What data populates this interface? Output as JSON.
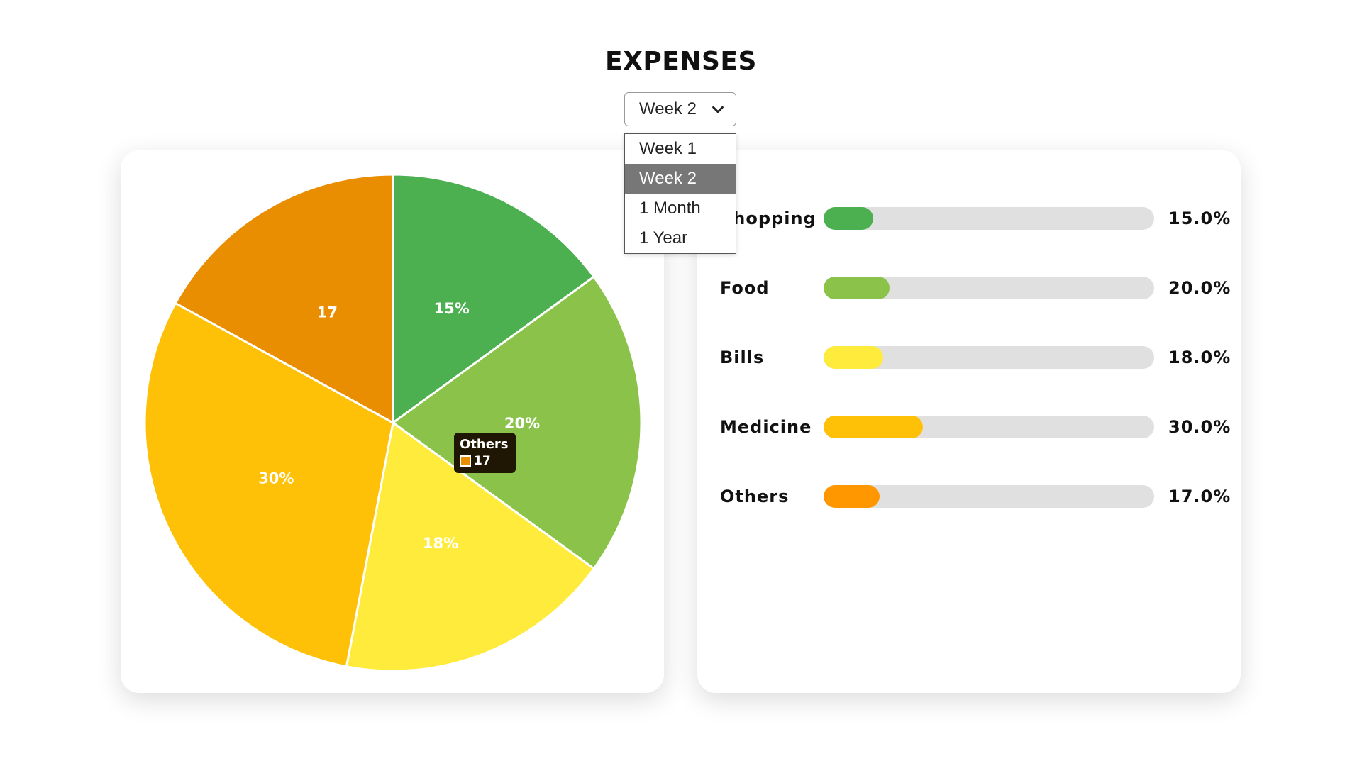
{
  "page": {
    "title": "EXPENSES"
  },
  "period_select": {
    "value": "Week 2",
    "options": [
      "Week 1",
      "Week 2",
      "1 Month",
      "1 Year"
    ],
    "highlighted_index": 1
  },
  "tooltip": {
    "title": "Others",
    "value": "17",
    "color": "#e88e00"
  },
  "chart_data": {
    "type": "pie",
    "categories": [
      "Shopping",
      "Food",
      "Bills",
      "Medicine",
      "Others"
    ],
    "values": [
      15,
      20,
      18,
      30,
      17
    ],
    "labels": [
      "15%",
      "20%",
      "18%",
      "30%",
      "17"
    ],
    "colors": [
      "#4caf50",
      "#8bc34a",
      "#ffeb3b",
      "#ffc107",
      "#e88e00"
    ]
  },
  "progress_bars": [
    {
      "label": "Shopping",
      "value": 15.0,
      "percent_text": "15.0%",
      "color": "#4caf50"
    },
    {
      "label": "Food",
      "value": 20.0,
      "percent_text": "20.0%",
      "color": "#8bc34a"
    },
    {
      "label": "Bills",
      "value": 18.0,
      "percent_text": "18.0%",
      "color": "#ffeb3b"
    },
    {
      "label": "Medicine",
      "value": 30.0,
      "percent_text": "30.0%",
      "color": "#ffc107"
    },
    {
      "label": "Others",
      "value": 17.0,
      "percent_text": "17.0%",
      "color": "#ff9800"
    }
  ]
}
